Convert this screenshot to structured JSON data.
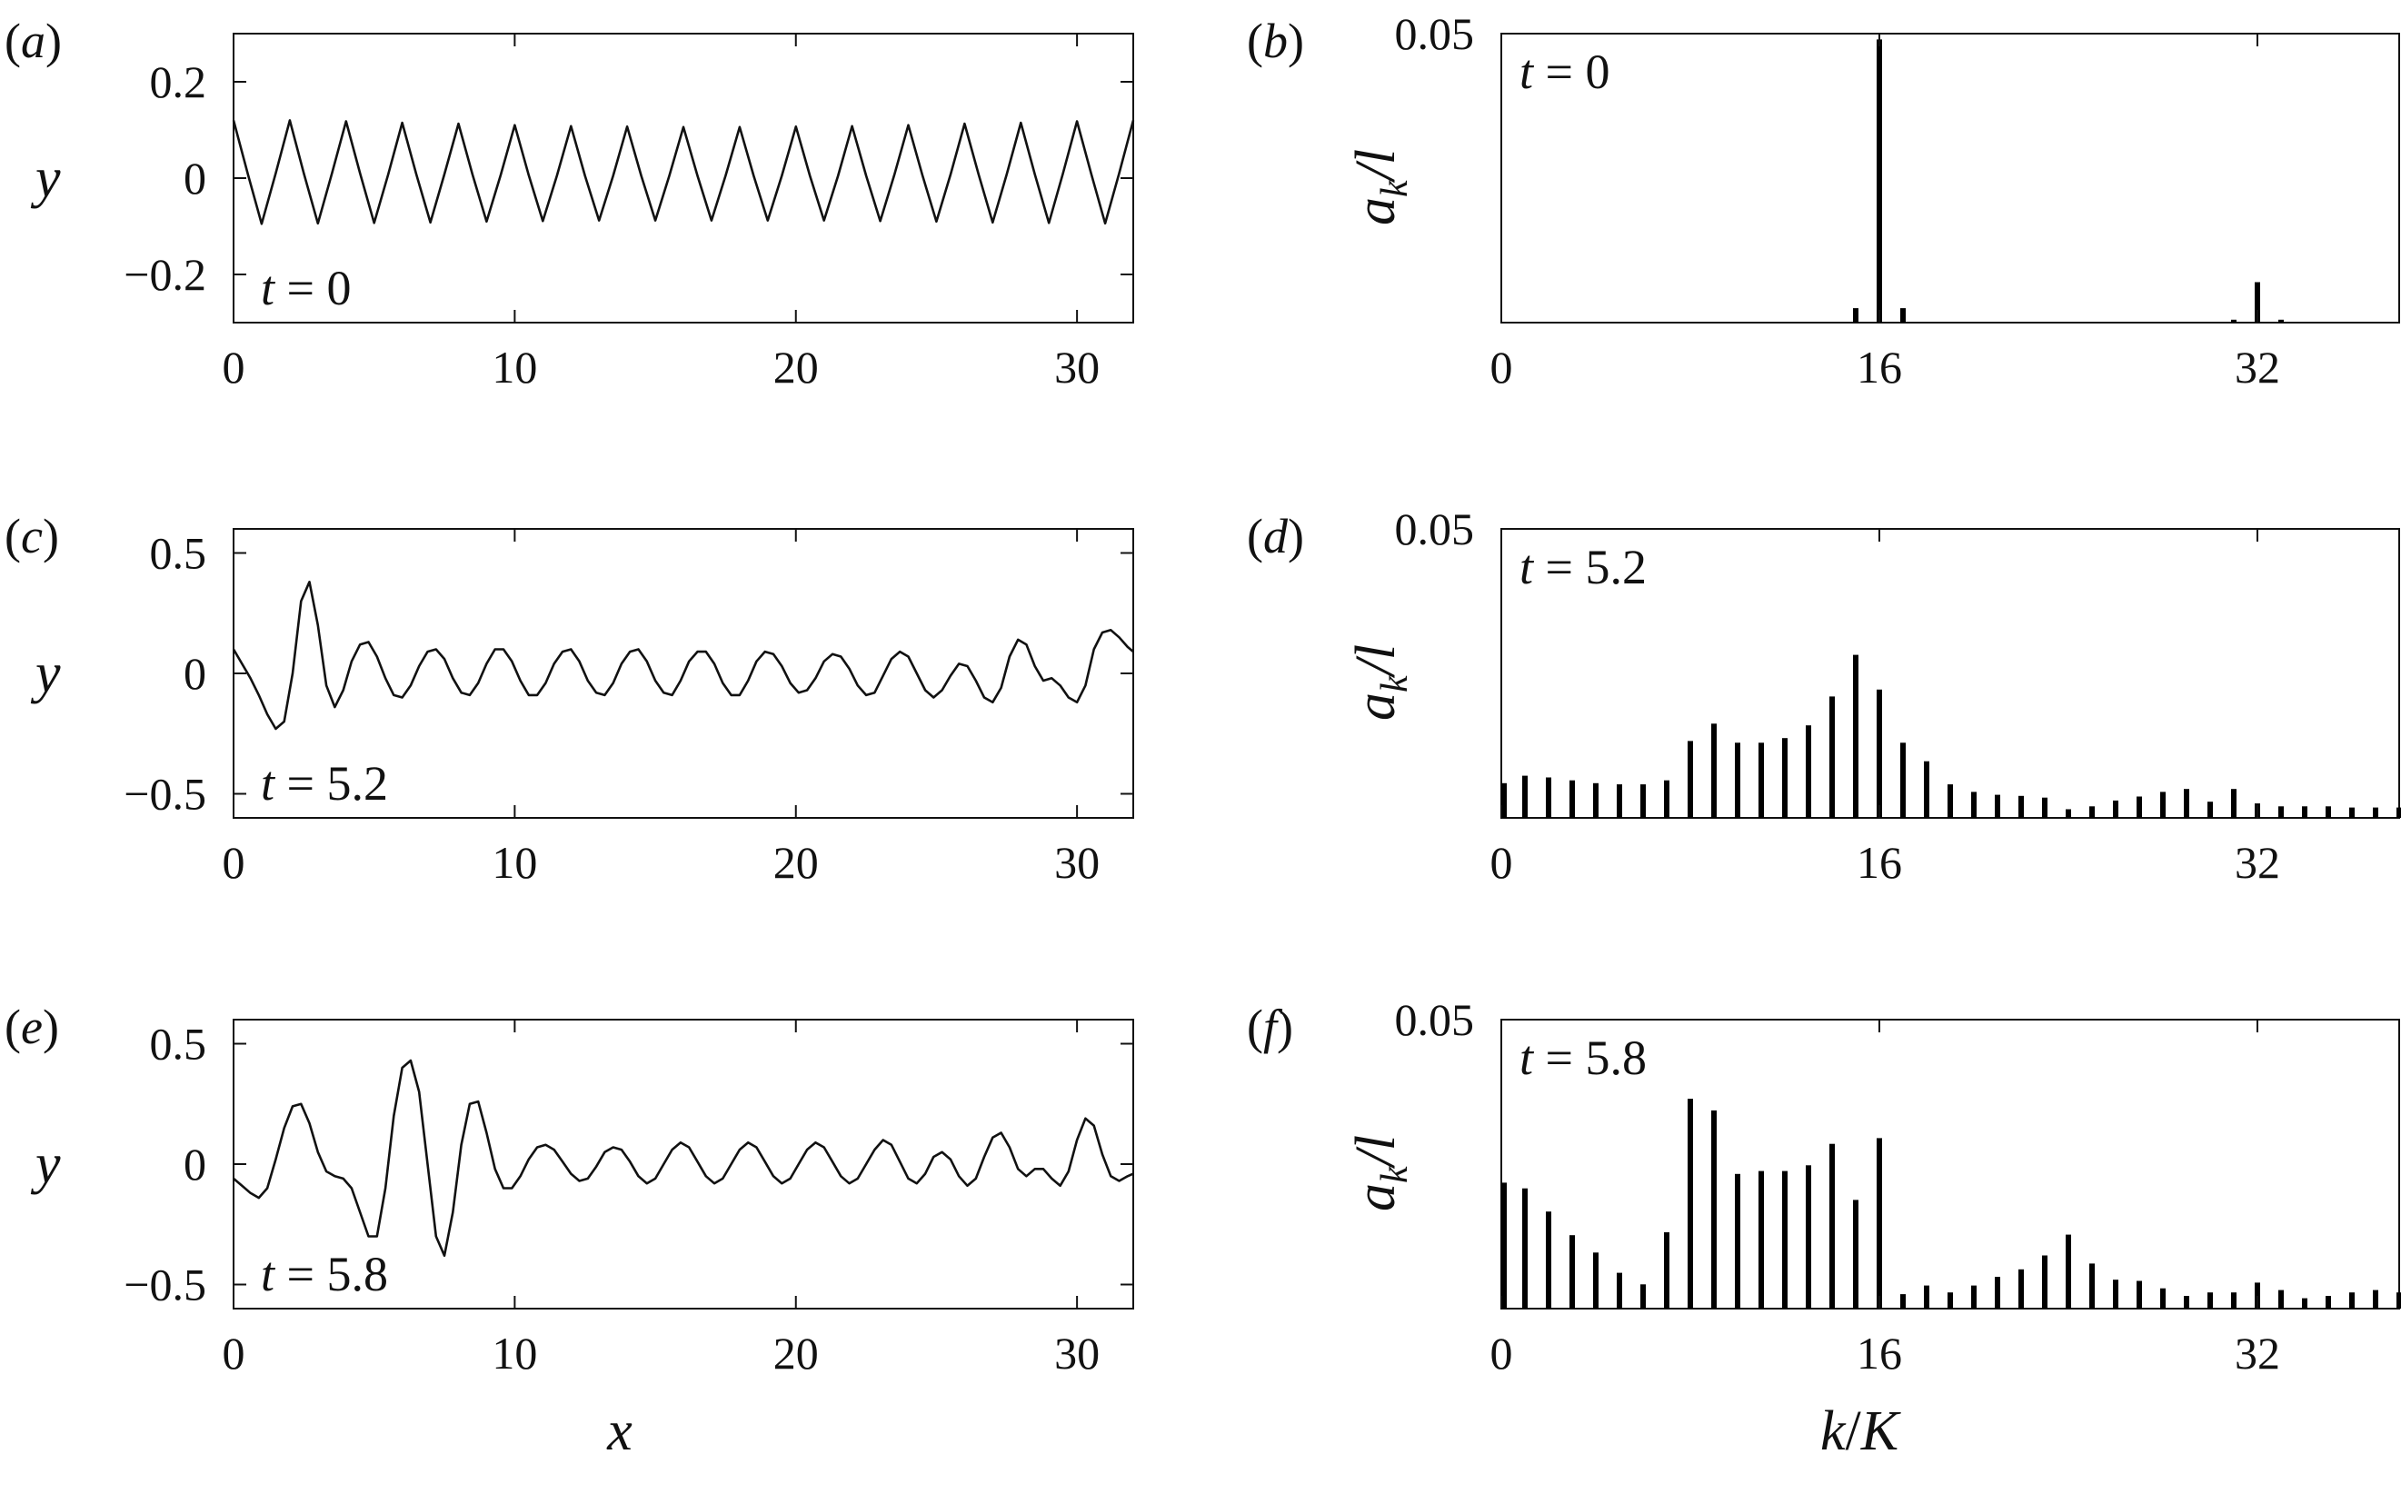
{
  "figure": {
    "xlabel_left": "x",
    "xlabel_right": "k/K",
    "colors": {
      "line": "#111111",
      "bar": "#000000",
      "frame": "#111111",
      "background": "#ffffff"
    }
  },
  "chart_data": [
    {
      "id": "a",
      "panel_label": "(a)",
      "type": "line",
      "time_label": "t = 0",
      "ylabel": "y",
      "xlabel": "",
      "xlim": [
        0,
        32
      ],
      "ylim": [
        -0.3,
        0.3
      ],
      "xticks": [
        0,
        10,
        20,
        30
      ],
      "xtick_labels": [
        "0",
        "10",
        "20",
        "30"
      ],
      "yticks": [
        0.2,
        0,
        -0.2
      ],
      "ytick_labels": [
        "0.2",
        "0",
        "−0.2"
      ],
      "x": [
        0.0,
        0.5,
        1.0,
        1.5,
        2.0,
        2.5,
        3.0,
        3.5,
        4.0,
        4.5,
        5.0,
        5.5,
        6.0,
        6.5,
        7.0,
        7.5,
        8.0,
        8.5,
        9.0,
        9.5,
        10.0,
        10.5,
        11.0,
        11.5,
        12.0,
        12.5,
        13.0,
        13.5,
        14.0,
        14.5,
        15.0,
        15.5,
        16.0,
        16.5,
        17.0,
        17.5,
        18.0,
        18.5,
        19.0,
        19.5,
        20.0,
        20.5,
        21.0,
        21.5,
        22.0,
        22.5,
        23.0,
        23.5,
        24.0,
        24.5,
        25.0,
        25.5,
        26.0,
        26.5,
        27.0,
        27.5,
        28.0,
        28.5,
        29.0,
        29.5,
        30.0,
        30.5,
        31.0,
        31.5,
        32.0
      ],
      "y": [
        0.12,
        0.01,
        -0.095,
        0.01,
        0.12,
        0.01,
        -0.094,
        0.01,
        0.118,
        0.01,
        -0.093,
        0.008,
        0.115,
        0.008,
        -0.092,
        0.008,
        0.113,
        0.007,
        -0.09,
        0.006,
        0.11,
        0.006,
        -0.089,
        0.005,
        0.108,
        0.005,
        -0.088,
        0.005,
        0.107,
        0.005,
        -0.088,
        0.005,
        0.106,
        0.005,
        -0.088,
        0.005,
        0.106,
        0.005,
        -0.088,
        0.005,
        0.107,
        0.005,
        -0.088,
        0.005,
        0.108,
        0.005,
        -0.089,
        0.006,
        0.11,
        0.006,
        -0.09,
        0.007,
        0.113,
        0.008,
        -0.092,
        0.008,
        0.115,
        0.008,
        -0.093,
        0.01,
        0.118,
        0.01,
        -0.094,
        0.01,
        0.12
      ]
    },
    {
      "id": "b",
      "panel_label": "(b)",
      "type": "bar",
      "time_label": "t = 0",
      "ylabel": "a_k/l",
      "xlabel": "",
      "xlim": [
        0,
        38
      ],
      "ylim": [
        0,
        0.05
      ],
      "xticks": [
        0,
        16,
        32
      ],
      "xtick_labels": [
        "0",
        "16",
        "32"
      ],
      "yticks": [
        0.05
      ],
      "ytick_labels": [
        "0.05"
      ],
      "k": [
        15,
        16,
        17,
        31,
        32,
        33
      ],
      "values": [
        0.0025,
        0.049,
        0.0025,
        0.0005,
        0.007,
        0.0005
      ]
    },
    {
      "id": "c",
      "panel_label": "(c)",
      "type": "line",
      "time_label": "t = 5.2",
      "ylabel": "y",
      "xlabel": "",
      "xlim": [
        0,
        32
      ],
      "ylim": [
        -0.6,
        0.6
      ],
      "xticks": [
        0,
        10,
        20,
        30
      ],
      "xtick_labels": [
        "0",
        "10",
        "20",
        "30"
      ],
      "yticks": [
        0.5,
        0,
        -0.5
      ],
      "ytick_labels": [
        "0.5",
        "0",
        "−0.5"
      ],
      "x": [
        0.0,
        0.3,
        0.6,
        0.9,
        1.2,
        1.5,
        1.8,
        2.1,
        2.4,
        2.7,
        3.0,
        3.3,
        3.6,
        3.9,
        4.2,
        4.5,
        4.8,
        5.1,
        5.4,
        5.7,
        6.0,
        6.3,
        6.6,
        6.9,
        7.2,
        7.5,
        7.8,
        8.1,
        8.4,
        8.7,
        9.0,
        9.3,
        9.6,
        9.9,
        10.2,
        10.5,
        10.8,
        11.1,
        11.4,
        11.7,
        12.0,
        12.3,
        12.6,
        12.9,
        13.2,
        13.5,
        13.8,
        14.1,
        14.4,
        14.7,
        15.0,
        15.3,
        15.6,
        15.9,
        16.2,
        16.5,
        16.8,
        17.1,
        17.4,
        17.7,
        18.0,
        18.3,
        18.6,
        18.9,
        19.2,
        19.5,
        19.8,
        20.1,
        20.4,
        20.7,
        21.0,
        21.3,
        21.6,
        21.9,
        22.2,
        22.5,
        22.8,
        23.1,
        23.4,
        23.7,
        24.0,
        24.3,
        24.6,
        24.9,
        25.2,
        25.5,
        25.8,
        26.1,
        26.4,
        26.7,
        27.0,
        27.3,
        27.6,
        27.9,
        28.2,
        28.5,
        28.8,
        29.1,
        29.4,
        29.7,
        30.0,
        30.3,
        30.6,
        30.9,
        31.2,
        31.5,
        31.8,
        32.0
      ],
      "y": [
        0.1,
        0.04,
        -0.02,
        -0.09,
        -0.17,
        -0.23,
        -0.2,
        0.0,
        0.3,
        0.38,
        0.2,
        -0.05,
        -0.14,
        -0.07,
        0.05,
        0.12,
        0.13,
        0.07,
        -0.02,
        -0.09,
        -0.1,
        -0.05,
        0.03,
        0.09,
        0.1,
        0.06,
        -0.02,
        -0.08,
        -0.09,
        -0.04,
        0.04,
        0.1,
        0.1,
        0.05,
        -0.03,
        -0.09,
        -0.09,
        -0.04,
        0.04,
        0.09,
        0.1,
        0.05,
        -0.03,
        -0.08,
        -0.09,
        -0.04,
        0.04,
        0.09,
        0.1,
        0.05,
        -0.03,
        -0.08,
        -0.09,
        -0.03,
        0.05,
        0.09,
        0.09,
        0.04,
        -0.04,
        -0.09,
        -0.09,
        -0.03,
        0.05,
        0.09,
        0.08,
        0.03,
        -0.04,
        -0.08,
        -0.07,
        -0.02,
        0.05,
        0.08,
        0.07,
        0.02,
        -0.05,
        -0.09,
        -0.08,
        -0.01,
        0.06,
        0.09,
        0.07,
        0.0,
        -0.07,
        -0.1,
        -0.07,
        -0.01,
        0.04,
        0.03,
        -0.03,
        -0.1,
        -0.12,
        -0.06,
        0.07,
        0.14,
        0.12,
        0.03,
        -0.03,
        -0.02,
        -0.05,
        -0.1,
        -0.12,
        -0.05,
        0.1,
        0.17,
        0.18,
        0.15,
        0.11,
        0.09
      ]
    },
    {
      "id": "d",
      "panel_label": "(d)",
      "type": "bar",
      "time_label": "t = 5.2",
      "ylabel": "a_k/l",
      "xlabel": "",
      "xlim": [
        0,
        38
      ],
      "ylim": [
        0,
        0.05
      ],
      "xticks": [
        0,
        16,
        32
      ],
      "xtick_labels": [
        "0",
        "16",
        "32"
      ],
      "yticks": [
        0.05
      ],
      "ytick_labels": [
        "0.05"
      ],
      "k": [
        0,
        1,
        2,
        3,
        4,
        5,
        6,
        7,
        8,
        9,
        10,
        11,
        12,
        13,
        14,
        15,
        16,
        17,
        18,
        19,
        20,
        21,
        22,
        23,
        24,
        25,
        26,
        27,
        28,
        29,
        30,
        31,
        32,
        33,
        34,
        35,
        36,
        37,
        38
      ],
      "values": [
        0.006,
        0.0073,
        0.007,
        0.0065,
        0.006,
        0.0058,
        0.0058,
        0.0065,
        0.0133,
        0.0163,
        0.013,
        0.013,
        0.0138,
        0.016,
        0.021,
        0.0282,
        0.0222,
        0.013,
        0.0098,
        0.0058,
        0.0045,
        0.004,
        0.0038,
        0.0035,
        0.0015,
        0.002,
        0.003,
        0.0037,
        0.0045,
        0.005,
        0.0028,
        0.005,
        0.0025,
        0.002,
        0.002,
        0.002,
        0.0018,
        0.0018,
        0.0018
      ]
    },
    {
      "id": "e",
      "panel_label": "(e)",
      "type": "line",
      "time_label": "t = 5.8",
      "ylabel": "y",
      "xlabel": "x",
      "xlim": [
        0,
        32
      ],
      "ylim": [
        -0.6,
        0.6
      ],
      "xticks": [
        0,
        10,
        20,
        30
      ],
      "xtick_labels": [
        "0",
        "10",
        "20",
        "30"
      ],
      "yticks": [
        0.5,
        0,
        -0.5
      ],
      "ytick_labels": [
        "0.5",
        "0",
        "−0.5"
      ],
      "x": [
        0.0,
        0.3,
        0.6,
        0.9,
        1.2,
        1.5,
        1.8,
        2.1,
        2.4,
        2.7,
        3.0,
        3.3,
        3.6,
        3.9,
        4.2,
        4.5,
        4.8,
        5.1,
        5.4,
        5.7,
        6.0,
        6.3,
        6.6,
        6.9,
        7.2,
        7.5,
        7.8,
        8.1,
        8.4,
        8.7,
        9.0,
        9.3,
        9.6,
        9.9,
        10.2,
        10.5,
        10.8,
        11.1,
        11.4,
        11.7,
        12.0,
        12.3,
        12.6,
        12.9,
        13.2,
        13.5,
        13.8,
        14.1,
        14.4,
        14.7,
        15.0,
        15.3,
        15.6,
        15.9,
        16.2,
        16.5,
        16.8,
        17.1,
        17.4,
        17.7,
        18.0,
        18.3,
        18.6,
        18.9,
        19.2,
        19.5,
        19.8,
        20.1,
        20.4,
        20.7,
        21.0,
        21.3,
        21.6,
        21.9,
        22.2,
        22.5,
        22.8,
        23.1,
        23.4,
        23.7,
        24.0,
        24.3,
        24.6,
        24.9,
        25.2,
        25.5,
        25.8,
        26.1,
        26.4,
        26.7,
        27.0,
        27.3,
        27.6,
        27.9,
        28.2,
        28.5,
        28.8,
        29.1,
        29.4,
        29.7,
        30.0,
        30.3,
        30.6,
        30.9,
        31.2,
        31.5,
        31.8,
        32.0
      ],
      "y": [
        -0.06,
        -0.09,
        -0.12,
        -0.14,
        -0.1,
        0.02,
        0.15,
        0.24,
        0.25,
        0.17,
        0.05,
        -0.03,
        -0.05,
        -0.06,
        -0.1,
        -0.2,
        -0.3,
        -0.3,
        -0.1,
        0.2,
        0.4,
        0.43,
        0.3,
        0.0,
        -0.3,
        -0.38,
        -0.2,
        0.08,
        0.25,
        0.26,
        0.13,
        -0.02,
        -0.1,
        -0.1,
        -0.05,
        0.02,
        0.07,
        0.08,
        0.06,
        0.01,
        -0.04,
        -0.07,
        -0.06,
        -0.01,
        0.05,
        0.07,
        0.06,
        0.01,
        -0.05,
        -0.08,
        -0.06,
        0.0,
        0.06,
        0.09,
        0.07,
        0.01,
        -0.05,
        -0.08,
        -0.06,
        0.0,
        0.06,
        0.09,
        0.07,
        0.01,
        -0.05,
        -0.08,
        -0.06,
        0.0,
        0.06,
        0.09,
        0.07,
        0.01,
        -0.05,
        -0.08,
        -0.06,
        0.0,
        0.06,
        0.1,
        0.08,
        0.01,
        -0.06,
        -0.08,
        -0.04,
        0.03,
        0.05,
        0.02,
        -0.05,
        -0.09,
        -0.06,
        0.03,
        0.11,
        0.13,
        0.07,
        -0.02,
        -0.05,
        -0.02,
        -0.02,
        -0.06,
        -0.09,
        -0.03,
        0.1,
        0.19,
        0.16,
        0.04,
        -0.05,
        -0.07,
        -0.05,
        -0.04
      ]
    },
    {
      "id": "f",
      "panel_label": "(f)",
      "type": "bar",
      "time_label": "t = 5.8",
      "ylabel": "a_k/l",
      "xlabel": "k/K",
      "xlim": [
        0,
        38
      ],
      "ylim": [
        0,
        0.05
      ],
      "xticks": [
        0,
        16,
        32
      ],
      "xtick_labels": [
        "0",
        "16",
        "32"
      ],
      "yticks": [
        0.05
      ],
      "ytick_labels": [
        "0.05"
      ],
      "k": [
        0,
        1,
        2,
        3,
        4,
        5,
        6,
        7,
        8,
        9,
        10,
        11,
        12,
        13,
        14,
        15,
        16,
        17,
        18,
        19,
        20,
        21,
        22,
        23,
        24,
        25,
        26,
        27,
        28,
        29,
        30,
        31,
        32,
        33,
        34,
        35,
        36,
        37,
        38
      ],
      "values": [
        0.0218,
        0.0208,
        0.0168,
        0.0127,
        0.0097,
        0.0062,
        0.0042,
        0.0132,
        0.0363,
        0.0343,
        0.0233,
        0.0238,
        0.0238,
        0.0248,
        0.0285,
        0.0188,
        0.0295,
        0.0025,
        0.004,
        0.0028,
        0.004,
        0.0055,
        0.0068,
        0.0092,
        0.0128,
        0.0078,
        0.005,
        0.0048,
        0.0035,
        0.0022,
        0.0028,
        0.0028,
        0.0045,
        0.0032,
        0.0018,
        0.0022,
        0.0028,
        0.0032,
        0.0028
      ]
    }
  ]
}
